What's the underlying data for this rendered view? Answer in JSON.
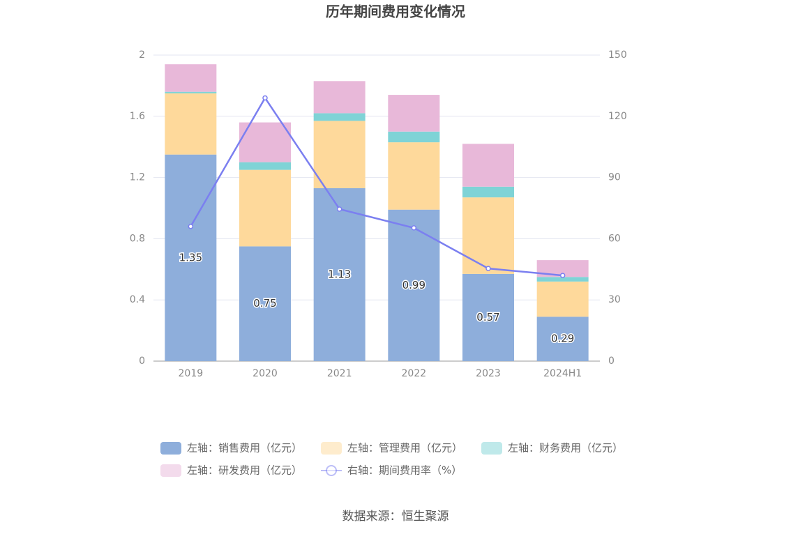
{
  "chart_data": {
    "type": "bar",
    "title": "历年期间费用变化情况",
    "categories": [
      "2019",
      "2020",
      "2021",
      "2022",
      "2023",
      "2024H1"
    ],
    "series": [
      {
        "name": "左轴：销售费用（亿元）",
        "color": "#8eaedb",
        "values": [
          1.35,
          0.75,
          1.13,
          0.99,
          0.57,
          0.29
        ]
      },
      {
        "name": "左轴：管理费用（亿元）",
        "color": "#fed99b",
        "values": [
          0.4,
          0.5,
          0.44,
          0.44,
          0.5,
          0.23
        ]
      },
      {
        "name": "左轴：财务费用（亿元）",
        "color": "#7fd3d6",
        "values": [
          0.01,
          0.05,
          0.05,
          0.07,
          0.07,
          0.03
        ]
      },
      {
        "name": "左轴：研发费用（亿元）",
        "color": "#e8b8d9",
        "values": [
          0.18,
          0.26,
          0.21,
          0.24,
          0.28,
          0.11
        ]
      },
      {
        "name": "右轴：期间费用率（%）",
        "color": "#7b7ff0",
        "type": "line",
        "axis": "y2",
        "values": [
          66,
          129,
          74.5,
          65.3,
          45.4,
          42
        ]
      }
    ],
    "ylim": [
      0,
      2
    ],
    "yticks": [
      0,
      0.4,
      0.8,
      1.2,
      1.6,
      2
    ],
    "y2lim": [
      0,
      150
    ],
    "y2ticks": [
      0,
      30,
      60,
      90,
      120,
      150
    ],
    "grid": true,
    "source": "数据来源：恒生聚源"
  }
}
